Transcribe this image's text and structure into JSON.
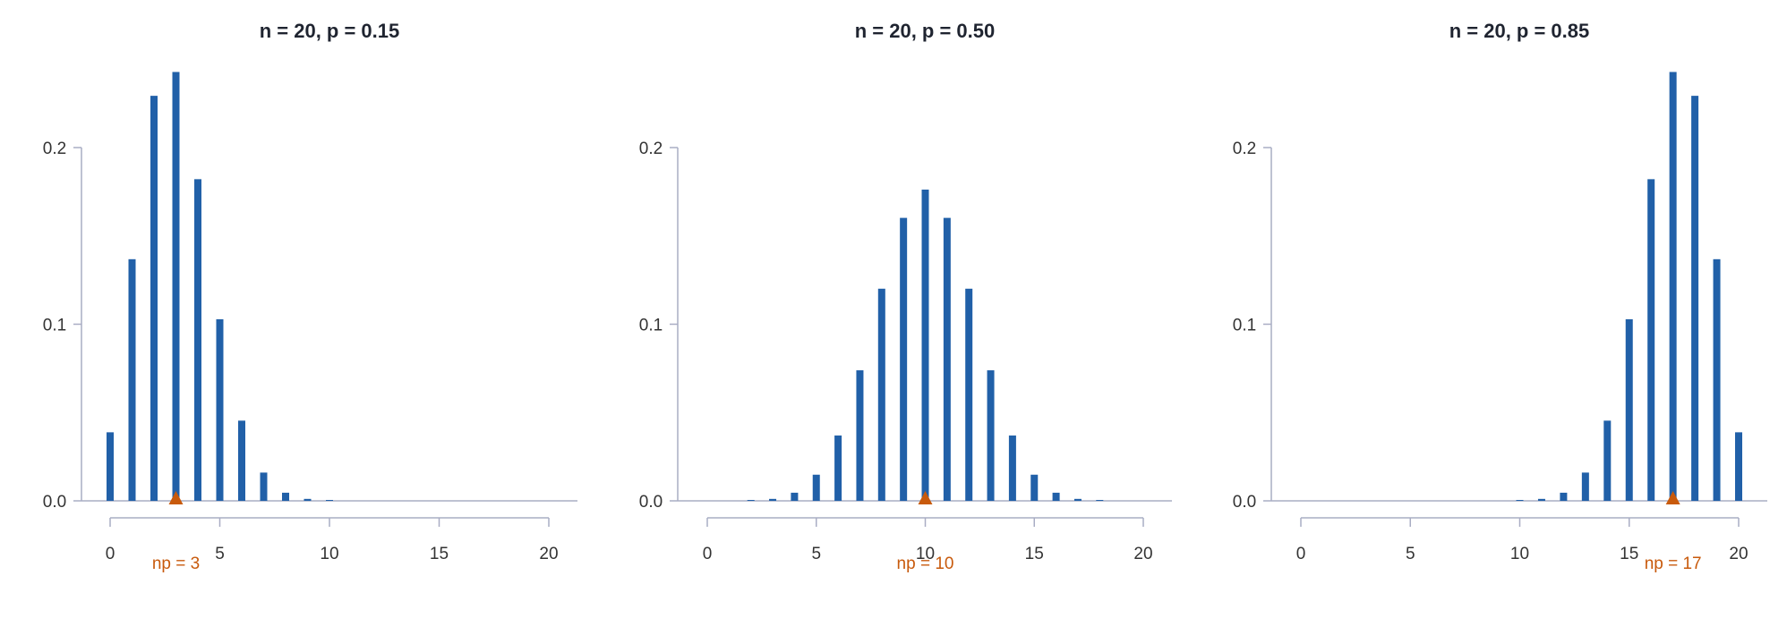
{
  "chart_data": [
    {
      "type": "bar",
      "title": "n = 20, p = 0.15",
      "x": [
        0,
        1,
        2,
        3,
        4,
        5,
        6,
        7,
        8,
        9,
        10,
        11,
        12,
        13,
        14,
        15,
        16,
        17,
        18,
        19,
        20
      ],
      "values": [
        0.0388,
        0.1368,
        0.2293,
        0.2428,
        0.1821,
        0.1028,
        0.0454,
        0.016,
        0.0046,
        0.0011,
        0.0002,
        0,
        0,
        0,
        0,
        0,
        0,
        0,
        0,
        0,
        0
      ],
      "xticks": [
        0,
        5,
        10,
        15,
        20
      ],
      "yticks": [
        "0.0",
        "0.1",
        "0.2"
      ],
      "xlim": [
        0,
        20
      ],
      "ylim": [
        0,
        0.2
      ],
      "mean": 3,
      "mean_label": "np = 3"
    },
    {
      "type": "bar",
      "title": "n = 20, p = 0.50",
      "x": [
        0,
        1,
        2,
        3,
        4,
        5,
        6,
        7,
        8,
        9,
        10,
        11,
        12,
        13,
        14,
        15,
        16,
        17,
        18,
        19,
        20
      ],
      "values": [
        0,
        0,
        0.0002,
        0.0011,
        0.0046,
        0.0148,
        0.037,
        0.0739,
        0.1201,
        0.1602,
        0.1762,
        0.1602,
        0.1201,
        0.0739,
        0.037,
        0.0148,
        0.0046,
        0.0011,
        0.0002,
        0,
        0
      ],
      "xticks": [
        0,
        5,
        10,
        15,
        20
      ],
      "yticks": [
        "0.0",
        "0.1",
        "0.2"
      ],
      "xlim": [
        0,
        20
      ],
      "ylim": [
        0,
        0.2
      ],
      "mean": 10,
      "mean_label": "np = 10"
    },
    {
      "type": "bar",
      "title": "n = 20, p = 0.85",
      "x": [
        0,
        1,
        2,
        3,
        4,
        5,
        6,
        7,
        8,
        9,
        10,
        11,
        12,
        13,
        14,
        15,
        16,
        17,
        18,
        19,
        20
      ],
      "values": [
        0,
        0,
        0,
        0,
        0,
        0,
        0,
        0,
        0,
        0,
        0.0002,
        0.0011,
        0.0046,
        0.016,
        0.0454,
        0.1028,
        0.1821,
        0.2428,
        0.2293,
        0.1368,
        0.0388
      ],
      "xticks": [
        0,
        5,
        10,
        15,
        20
      ],
      "yticks": [
        "0.0",
        "0.1",
        "0.2"
      ],
      "xlim": [
        0,
        20
      ],
      "ylim": [
        0,
        0.2
      ],
      "mean": 17,
      "mean_label": "np = 17"
    }
  ],
  "colors": {
    "bar": "#2160a8",
    "marker": "#c85a0c",
    "axis": "#a9adc4",
    "background": "#ffffff"
  }
}
